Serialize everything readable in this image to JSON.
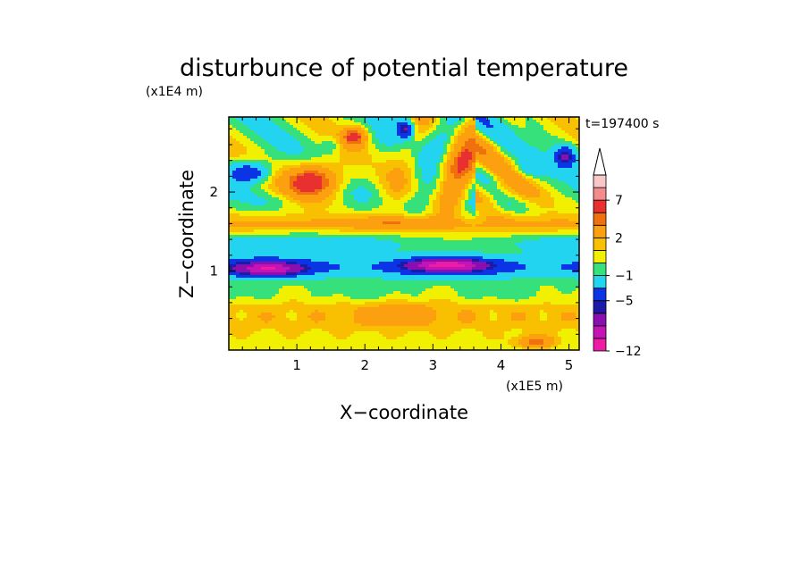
{
  "chart_data": {
    "type": "heatmap",
    "title": "disturbunce of potential temperature",
    "time_label": "t=197400 s",
    "xlabel": "X−coordinate",
    "ylabel": "Z−coordinate",
    "x_unit": "(x1E5 m)",
    "y_unit": "(x1E4 m)",
    "xlim": [
      0,
      5.15
    ],
    "ylim": [
      0,
      2.95
    ],
    "x_ticks": [
      {
        "value": 1,
        "label": "1"
      },
      {
        "value": 2,
        "label": "2"
      },
      {
        "value": 3,
        "label": "3"
      },
      {
        "value": 4,
        "label": "4"
      },
      {
        "value": 5,
        "label": "5"
      }
    ],
    "y_ticks": [
      {
        "value": 1,
        "label": "1"
      },
      {
        "value": 2,
        "label": "2"
      }
    ],
    "colorbar": {
      "levels": [
        -12,
        -10,
        -8,
        -6,
        -5,
        -3,
        -1,
        0,
        1,
        2,
        4,
        5,
        7,
        9,
        11
      ],
      "colors": [
        "#ee1ba5",
        "#c514b6",
        "#8a0fb0",
        "#1b1ba8",
        "#0a34e6",
        "#22d4f0",
        "#36e07a",
        "#f0f000",
        "#f8c000",
        "#fca010",
        "#f07010",
        "#e83030",
        "#f48c8c",
        "#f8c8c8"
      ],
      "extend": "max",
      "tick_labels": [
        {
          "value": -12,
          "label": "−12"
        },
        {
          "value": -5,
          "label": "−5"
        },
        {
          "value": -1,
          "label": "−1"
        },
        {
          "value": 2,
          "label": "2"
        },
        {
          "value": 7,
          "label": "7"
        }
      ]
    },
    "features": [
      {
        "x": 0.3,
        "z": 2.25,
        "value": -6
      },
      {
        "x": 0.65,
        "z": 1.9,
        "value": -1
      },
      {
        "x": 1.25,
        "z": 2.15,
        "value": 7
      },
      {
        "x": 1.5,
        "z": 2.6,
        "value": -2
      },
      {
        "x": 1.85,
        "z": 2.7,
        "value": 5
      },
      {
        "x": 2.6,
        "z": 2.8,
        "value": -6
      },
      {
        "x": 3.3,
        "z": 2.3,
        "value": 4
      },
      {
        "x": 3.9,
        "z": 2.0,
        "value": 2
      },
      {
        "x": 4.45,
        "z": 2.3,
        "value": -2
      },
      {
        "x": 4.95,
        "z": 2.45,
        "value": -6
      },
      {
        "x": 2.5,
        "z": 1.6,
        "value": 2
      },
      {
        "x": 0.6,
        "z": 1.02,
        "value": -5
      },
      {
        "x": 3.2,
        "z": 1.08,
        "value": -6
      },
      {
        "x": 2.5,
        "z": 0.45,
        "value": 2
      },
      {
        "x": 4.5,
        "z": 0.1,
        "value": 4
      }
    ]
  }
}
